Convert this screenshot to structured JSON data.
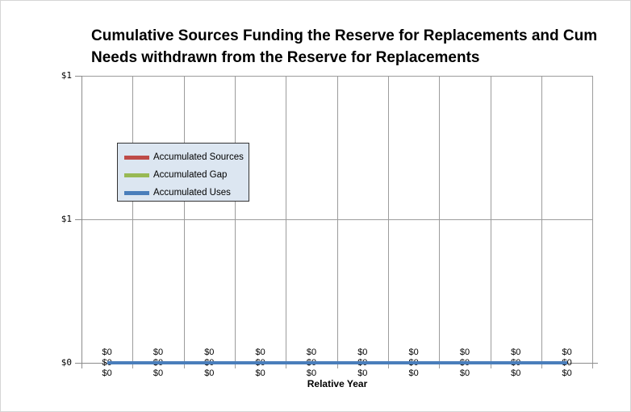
{
  "frame": {
    "background": "#ffffff",
    "border_color": "#d6d6d6"
  },
  "title": {
    "line1": "Cumulative Sources Funding the Reserve for Replacements and Cum",
    "line2": "Needs withdrawn from the Reserve for Replacements"
  },
  "x_axis_title": "Relative Year",
  "legend": {
    "background": "#dce6f1",
    "border_color": "#333333",
    "items": [
      {
        "label": "Accumulated Sources",
        "color": "#be4b48"
      },
      {
        "label": "Accumulated Gap",
        "color": "#98b954"
      },
      {
        "label": "Accumulated Uses",
        "color": "#4a7ebb"
      }
    ]
  },
  "chart_data": {
    "type": "line",
    "title": "Cumulative Sources Funding the Reserve for Replacements and Cum\nNeeds withdrawn from the Reserve for Replacements",
    "xlabel": "Relative Year",
    "ylabel": "",
    "categories": [
      "",
      "",
      "",
      "",
      "",
      "",
      "",
      "",
      "",
      ""
    ],
    "series": [
      {
        "name": "Accumulated Sources",
        "color": "#be4b48",
        "values": [
          0,
          0,
          0,
          0,
          0,
          0,
          0,
          0,
          0,
          0
        ],
        "data_label": "$0",
        "label_position": "above"
      },
      {
        "name": "Accumulated Gap",
        "color": "#98b954",
        "values": [
          0,
          0,
          0,
          0,
          0,
          0,
          0,
          0,
          0,
          0
        ],
        "data_label": "$0",
        "label_position": "center"
      },
      {
        "name": "Accumulated Uses",
        "color": "#4a7ebb",
        "values": [
          0,
          0,
          0,
          0,
          0,
          0,
          0,
          0,
          0,
          0
        ],
        "data_label": "$0",
        "label_position": "below"
      }
    ],
    "y_axis": {
      "min": 0,
      "max": 1,
      "ticks": [
        {
          "label": "$0",
          "value": 0
        },
        {
          "label": "$1",
          "value": 0.5
        },
        {
          "label": "$1",
          "value": 1
        }
      ]
    },
    "grid": {
      "vertical": true,
      "horizontal": true,
      "color": "#9c9c9c"
    },
    "legend_position": "middle-left"
  }
}
